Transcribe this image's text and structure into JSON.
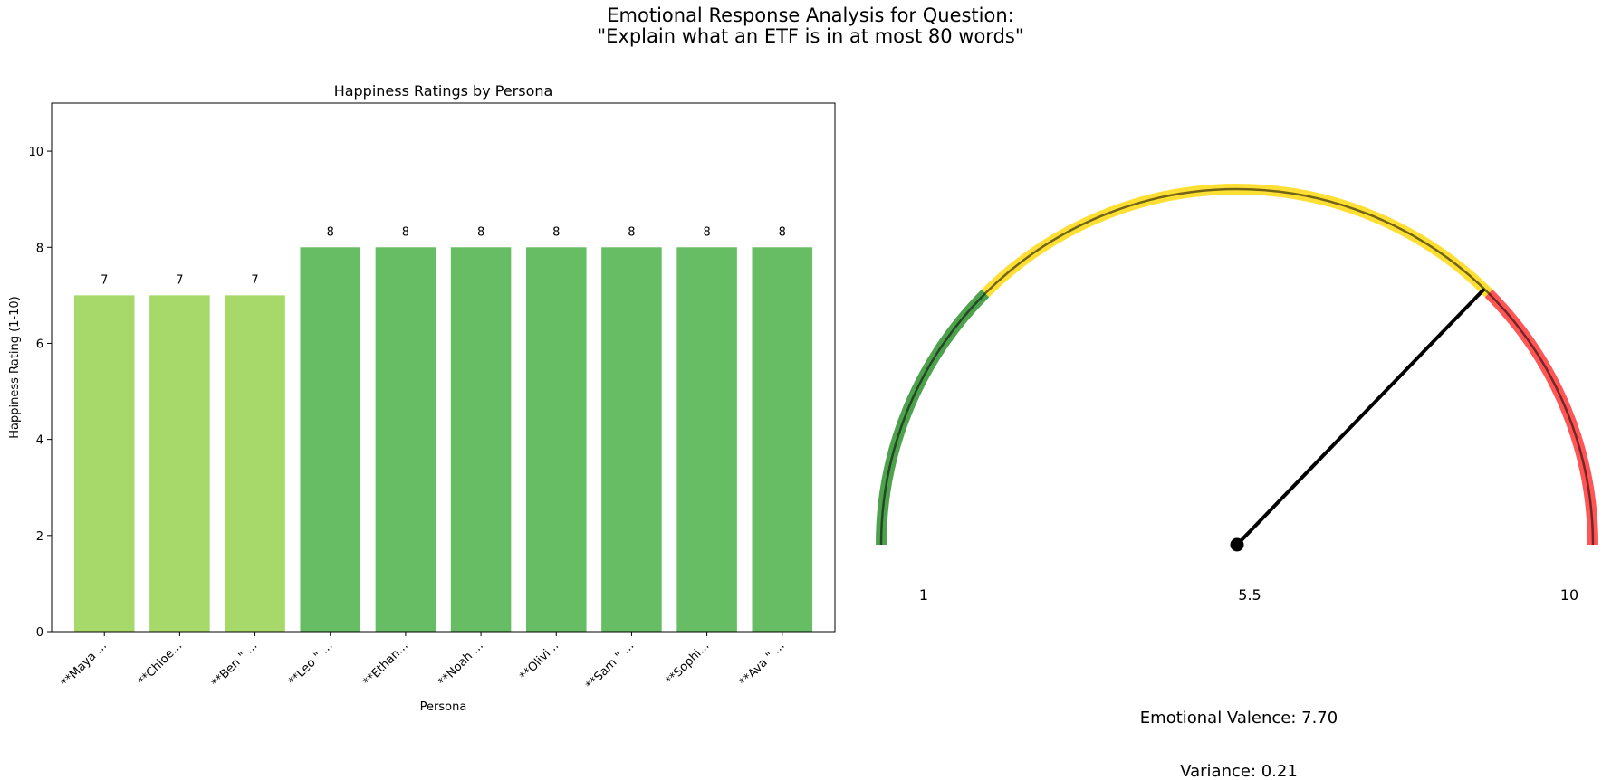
{
  "suptitle": {
    "line1": "Emotional Response Analysis for Question:",
    "line2": "\"Explain what an ETF is in at most 80 words\""
  },
  "chart_data": [
    {
      "type": "bar",
      "title": "Happiness Ratings by Persona",
      "xlabel": "Persona",
      "ylabel": "Happiness Rating (1-10)",
      "ylim": [
        0,
        11
      ],
      "yticks": [
        0,
        2,
        4,
        6,
        8,
        10
      ],
      "grid": false,
      "categories": [
        "**Maya ...",
        "**Chloe...",
        "**Ben \" ...",
        "**Leo \" ...",
        "**Ethan...",
        "**Noah ...",
        "**Olivi...",
        "**Sam \" ...",
        "**Sophi...",
        "**Ava \" ..."
      ],
      "values": [
        7,
        7,
        7,
        8,
        8,
        8,
        8,
        8,
        8,
        8
      ],
      "colors": [
        "#a6d96a",
        "#a6d96a",
        "#a6d96a",
        "#66bd63",
        "#66bd63",
        "#66bd63",
        "#66bd63",
        "#66bd63",
        "#66bd63",
        "#66bd63"
      ]
    },
    {
      "type": "gauge",
      "min": 1,
      "max": 10,
      "value": 7.7,
      "tick_labels": [
        "1",
        "5.5",
        "10"
      ],
      "zones": [
        {
          "from": 1,
          "to": 3.25,
          "color": "#228b22"
        },
        {
          "from": 3.25,
          "to": 7.75,
          "color": "#ffd700"
        },
        {
          "from": 7.75,
          "to": 10,
          "color": "#ff2a2a"
        }
      ],
      "valence_text": "Emotional Valence: 7.70",
      "variance_text": "Variance: 0.21"
    }
  ]
}
